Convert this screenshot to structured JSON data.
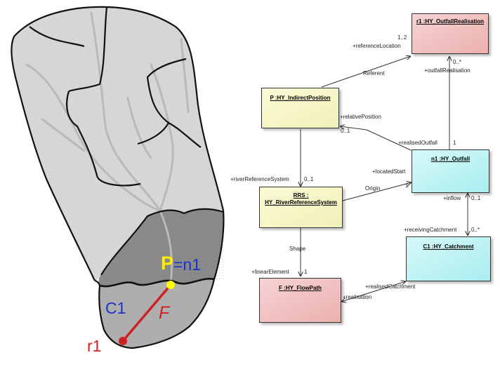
{
  "map": {
    "label_P": "P",
    "label_eq_n1": "=n1",
    "label_C1": "C1",
    "label_F": "F",
    "label_r1": "r1",
    "colors": {
      "upper_catchment": "#d5d6d8",
      "middle_catchment": "#8a8a8a",
      "lower_catchment": "#aeaeae",
      "streams": "#b9b9b9",
      "flowpath": "#cc2222",
      "point_P": "#ffff00",
      "label_P": "#ffee00",
      "label_n1": "#1a33cc",
      "label_C1": "#1a33cc",
      "label_F": "#cc2222",
      "label_r1": "#cc2222"
    }
  },
  "uml": {
    "boxes": {
      "outfall_realisation": "r1 :HY_OutfallRealisation",
      "indirect_position": "P :HY_IndirectPosition",
      "outfall": "n1 :HY_Outfall",
      "river_reference_system_line1": "RRS :",
      "river_reference_system_line2": "HY_RiverReferenceSystem",
      "catchment": "C1 :HY_Catchment",
      "flowpath": "F :HY_FlowPath"
    },
    "labels": {
      "mult_1_2": "1..2",
      "reference_location": "+referenceLocation",
      "referent": "Referent",
      "mult_0_star_realisation": "0..*",
      "outfall_realisation_role": "+outfallRealisation",
      "relative_position": "+relativePosition",
      "mult_0_1_position": "0..1",
      "realised_outfall": "+realisedOutfall",
      "mult_1_outfall": "1",
      "river_reference_system_role": "+riverReferenceSystem",
      "mult_0_1_rrs": "0..1",
      "located_start": "+locatedStart",
      "origin": "Origin",
      "mult_1_start": "1",
      "inflow": "+inflow",
      "mult_0_1_inflow": "0..1",
      "receiving_catchment": "+receivingCatchment",
      "mult_0_star_catchment": "0..*",
      "shape": "Shape",
      "linear_element": "+linearElement",
      "mult_1_linear": "1",
      "realised_catchment": "+realisedCatchment",
      "realisation": "+realisation"
    },
    "colors": {
      "pink": "#f6d3d3",
      "pink_dark": "#ecb0b0",
      "yellow": "#fbfbd6",
      "yellow_dark": "#f0f0b8",
      "cyan": "#d7f8f8",
      "cyan_dark": "#a8eef0"
    }
  }
}
